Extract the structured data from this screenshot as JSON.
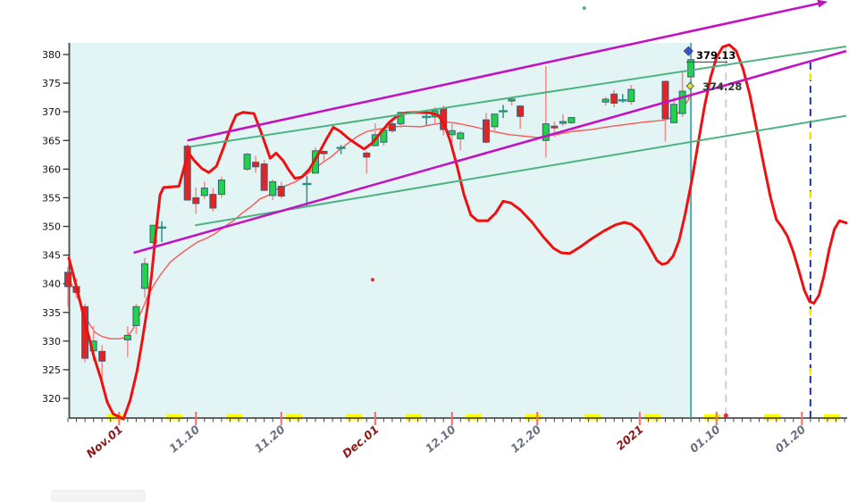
{
  "colors": {
    "chart_bg": "#e2f5f4",
    "page_bg": "#ffffff",
    "candle_up": "#22d24b",
    "candle_down": "#e32424",
    "candle_border": "#35607a",
    "wick": "#f29090",
    "doji": "#2a8f85",
    "ma_line": "#ff5555",
    "cycle_line": "#ee1111",
    "green_channel": "#4db380",
    "magenta_channel": "#c213c2",
    "weekend_mark": "#ffff00",
    "axis": "#444444",
    "date_tick": "#ff6666",
    "label_gray": "#6a7080",
    "label_dark_red": "#8b1a1a",
    "teal_vertical": "#4aabab",
    "gray_vertical": "#cfcfcf",
    "navy_vertical": "#20379b",
    "navy_vertical_alt_dash": "#ffee00"
  },
  "chart_data": {
    "type": "candlestick",
    "title": "",
    "y_axis": {
      "min": 316.5,
      "max": 382,
      "ticks": [
        320,
        325,
        330,
        335,
        340,
        345,
        350,
        355,
        360,
        365,
        370,
        375,
        380
      ]
    },
    "x_axis": {
      "unit": "calendar day offset from first candle (Oct 26)",
      "minor_tick_every_day": true,
      "total_days": 91,
      "tick_labels": [
        {
          "text": "Nov.01",
          "day": 6,
          "emphasis": true
        },
        {
          "text": "11.10",
          "day": 15,
          "emphasis": false
        },
        {
          "text": "11.20",
          "day": 25,
          "emphasis": false
        },
        {
          "text": "Dec.01",
          "day": 36,
          "emphasis": true
        },
        {
          "text": "12.10",
          "day": 45,
          "emphasis": false
        },
        {
          "text": "12.20",
          "day": 55,
          "emphasis": false
        },
        {
          "text": "2021",
          "day": 67,
          "emphasis": true
        },
        {
          "text": "01.10",
          "day": 76,
          "emphasis": false
        },
        {
          "text": "01.20",
          "day": 86,
          "emphasis": false
        }
      ]
    },
    "weekend_day_offsets": [
      5,
      12,
      19,
      26,
      33,
      40,
      47,
      54,
      61,
      68,
      75,
      82,
      89
    ],
    "candle_format": [
      "date",
      "open",
      "high",
      "low",
      "close",
      "day_offset",
      "doji_flag"
    ],
    "candles": [
      [
        "10-26",
        342.0,
        343.0,
        336.0,
        339.5,
        0,
        0
      ],
      [
        "10-27",
        339.5,
        341.0,
        337.5,
        338.5,
        1,
        0
      ],
      [
        "10-28",
        336.0,
        336.5,
        326.3,
        327.0,
        2,
        0
      ],
      [
        "10-29",
        328.3,
        332.6,
        326.5,
        330.0,
        3,
        0
      ],
      [
        "10-30",
        328.2,
        329.3,
        322.6,
        326.5,
        4,
        0
      ],
      [
        "11-02",
        330.2,
        332.6,
        327.2,
        331.0,
        7,
        0
      ],
      [
        "11-03",
        332.7,
        336.5,
        331.2,
        336.0,
        8,
        0
      ],
      [
        "11-04",
        339.2,
        344.5,
        337.5,
        343.5,
        9,
        0
      ],
      [
        "11-05",
        347.2,
        350.2,
        346.1,
        350.2,
        10,
        0
      ],
      [
        "11-06",
        349.8,
        350.9,
        347.3,
        349.8,
        11,
        1
      ],
      [
        "11-09",
        364.0,
        364.4,
        354.9,
        354.6,
        14,
        0
      ],
      [
        "11-10",
        355.0,
        356.8,
        352.2,
        354.0,
        15,
        0
      ],
      [
        "11-11",
        355.4,
        357.8,
        354.8,
        356.7,
        16,
        0
      ],
      [
        "11-12",
        355.6,
        356.7,
        352.6,
        353.2,
        17,
        0
      ],
      [
        "11-13",
        355.6,
        358.7,
        355.0,
        358.1,
        18,
        0
      ],
      [
        "11-16",
        360.0,
        362.8,
        359.7,
        362.6,
        21,
        0
      ],
      [
        "11-17",
        361.2,
        362.3,
        359.4,
        360.4,
        22,
        0
      ],
      [
        "11-18",
        360.9,
        361.6,
        356.2,
        356.3,
        23,
        0
      ],
      [
        "11-19",
        355.4,
        358.2,
        354.6,
        357.8,
        24,
        0
      ],
      [
        "11-20",
        357.0,
        357.8,
        354.9,
        355.3,
        25,
        0
      ],
      [
        "11-23",
        357.4,
        358.8,
        353.5,
        357.4,
        28,
        1
      ],
      [
        "11-24",
        359.3,
        363.8,
        359.3,
        363.2,
        29,
        0
      ],
      [
        "11-25",
        363.1,
        363.2,
        361.5,
        362.7,
        30,
        0
      ],
      [
        "11-27",
        363.7,
        364.2,
        362.6,
        363.7,
        32,
        1
      ],
      [
        "11-30",
        362.8,
        363.1,
        359.2,
        362.1,
        35,
        0
      ],
      [
        "12-01",
        364.1,
        368.0,
        364.0,
        366.0,
        36,
        0
      ],
      [
        "12-02",
        364.7,
        367.2,
        364.1,
        366.8,
        37,
        0
      ],
      [
        "12-03",
        367.9,
        368.4,
        366.3,
        366.7,
        38,
        0
      ],
      [
        "12-04",
        367.9,
        369.9,
        367.2,
        369.9,
        39,
        0
      ],
      [
        "12-07",
        369.1,
        369.6,
        367.7,
        369.1,
        42,
        1
      ],
      [
        "12-08",
        369.1,
        370.8,
        368.0,
        370.2,
        43,
        0
      ],
      [
        "12-09",
        370.5,
        371.1,
        365.9,
        366.9,
        44,
        0
      ],
      [
        "12-10",
        366.0,
        367.9,
        364.5,
        366.7,
        45,
        0
      ],
      [
        "12-11",
        365.3,
        366.7,
        363.3,
        366.3,
        46,
        0
      ],
      [
        "12-14",
        368.6,
        369.8,
        364.5,
        364.7,
        49,
        0
      ],
      [
        "12-15",
        367.4,
        369.6,
        366.3,
        369.6,
        50,
        0
      ],
      [
        "12-16",
        370.1,
        371.2,
        368.9,
        370.1,
        51,
        1
      ],
      [
        "12-17",
        371.9,
        372.5,
        371.1,
        372.2,
        52,
        0
      ],
      [
        "12-18",
        371.0,
        371.2,
        367.0,
        369.2,
        53,
        0
      ],
      [
        "12-21",
        365.0,
        378.0,
        362.0,
        367.9,
        56,
        0
      ],
      [
        "12-22",
        367.5,
        368.3,
        365.6,
        367.3,
        57,
        0
      ],
      [
        "12-23",
        368.0,
        369.6,
        367.5,
        368.3,
        58,
        0
      ],
      [
        "12-24",
        368.1,
        369.0,
        367.9,
        369.0,
        59,
        0
      ],
      [
        "12-28",
        371.7,
        372.6,
        371.1,
        372.2,
        63,
        0
      ],
      [
        "12-29",
        373.1,
        373.8,
        370.8,
        371.5,
        64,
        0
      ],
      [
        "12-30",
        372.0,
        373.1,
        371.6,
        372.0,
        65,
        1
      ],
      [
        "12-31",
        371.8,
        374.7,
        371.2,
        373.9,
        66,
        0
      ],
      [
        "01-04",
        375.3,
        375.5,
        364.8,
        368.8,
        70,
        0
      ],
      [
        "01-05",
        368.1,
        372.5,
        368.0,
        371.3,
        71,
        0
      ],
      [
        "01-06",
        369.7,
        377.0,
        369.1,
        373.6,
        72,
        0
      ],
      [
        "01-07",
        376.1,
        379.5,
        375.6,
        379.1,
        73,
        0
      ]
    ],
    "ma_line_day_value": [
      [
        0.1,
        341.0
      ],
      [
        0.6,
        339.3
      ],
      [
        1.3,
        337.1
      ],
      [
        2,
        334.5
      ],
      [
        2.6,
        332.8
      ],
      [
        3.2,
        331.5
      ],
      [
        4,
        330.8
      ],
      [
        5,
        330.4
      ],
      [
        6.1,
        330.4
      ],
      [
        6.9,
        330.7
      ],
      [
        7.5,
        331.8
      ],
      [
        8.2,
        333.8
      ],
      [
        8.8,
        335.8
      ],
      [
        9.4,
        338.0
      ],
      [
        10.2,
        340.1
      ],
      [
        11,
        341.9
      ],
      [
        12,
        343.8
      ],
      [
        13.1,
        345.1
      ],
      [
        14.1,
        346.2
      ],
      [
        15.2,
        347.3
      ],
      [
        16.2,
        347.9
      ],
      [
        17.3,
        348.8
      ],
      [
        18.3,
        349.9
      ],
      [
        19.4,
        351.0
      ],
      [
        20.4,
        352.3
      ],
      [
        21.5,
        353.5
      ],
      [
        22.5,
        354.8
      ],
      [
        23.6,
        355.5
      ],
      [
        24.6,
        356.6
      ],
      [
        25.7,
        357.2
      ],
      [
        26.7,
        357.8
      ],
      [
        27.7,
        358.8
      ],
      [
        28.8,
        360.0
      ],
      [
        29.8,
        361.1
      ],
      [
        30.9,
        362.2
      ],
      [
        31.9,
        363.5
      ],
      [
        33,
        364.7
      ],
      [
        34,
        365.8
      ],
      [
        35.1,
        366.6
      ],
      [
        36.1,
        366.9
      ],
      [
        37.2,
        367.2
      ],
      [
        38.2,
        367.4
      ],
      [
        39.3,
        367.5
      ],
      [
        41.4,
        367.4
      ],
      [
        42.4,
        367.7
      ],
      [
        44.5,
        368.2
      ],
      [
        45.6,
        368.0
      ],
      [
        47.6,
        367.4
      ],
      [
        49.7,
        366.6
      ],
      [
        51.8,
        366.0
      ],
      [
        53.9,
        365.7
      ],
      [
        55,
        365.5
      ],
      [
        57.1,
        366.0
      ],
      [
        59.2,
        366.6
      ],
      [
        61.3,
        366.9
      ],
      [
        63.3,
        367.4
      ],
      [
        65.4,
        367.8
      ],
      [
        67.5,
        368.2
      ],
      [
        69.6,
        368.5
      ],
      [
        70.7,
        368.9
      ],
      [
        71.4,
        369.6
      ],
      [
        72.1,
        370.8
      ],
      [
        72.7,
        372.1
      ],
      [
        73.1,
        373.5
      ]
    ],
    "cycle_line_day_value": [
      [
        0.1,
        344.5
      ],
      [
        1,
        339.5
      ],
      [
        2,
        333.4
      ],
      [
        3,
        327.5
      ],
      [
        3.9,
        323.3
      ],
      [
        4.6,
        319.4
      ],
      [
        5.3,
        317.3
      ],
      [
        6.5,
        316.4
      ],
      [
        7.3,
        319.7
      ],
      [
        8.1,
        324.8
      ],
      [
        8.7,
        330.0
      ],
      [
        9.3,
        335.7
      ],
      [
        9.8,
        341.5
      ],
      [
        10.4,
        350.2
      ],
      [
        10.8,
        355.5
      ],
      [
        11.2,
        356.8
      ],
      [
        13,
        357.0
      ],
      [
        13.7,
        360.7
      ],
      [
        14.1,
        362.9
      ],
      [
        14.8,
        361.5
      ],
      [
        15.7,
        360.1
      ],
      [
        16.5,
        359.4
      ],
      [
        17.4,
        360.5
      ],
      [
        18.2,
        363.6
      ],
      [
        19.1,
        367.4
      ],
      [
        19.7,
        369.4
      ],
      [
        20.5,
        369.9
      ],
      [
        21.8,
        369.7
      ],
      [
        22.6,
        366.6
      ],
      [
        23.7,
        361.9
      ],
      [
        24.4,
        362.8
      ],
      [
        25.2,
        361.5
      ],
      [
        26,
        359.6
      ],
      [
        26.6,
        358.4
      ],
      [
        27.4,
        358.6
      ],
      [
        28.3,
        360.0
      ],
      [
        29.3,
        362.5
      ],
      [
        30.2,
        365.0
      ],
      [
        31.1,
        367.3
      ],
      [
        31.9,
        366.6
      ],
      [
        32.9,
        365.3
      ],
      [
        33.8,
        364.4
      ],
      [
        34.7,
        363.5
      ],
      [
        35.7,
        364.6
      ],
      [
        36.6,
        366.3
      ],
      [
        37.6,
        368.1
      ],
      [
        38.6,
        369.3
      ],
      [
        39.6,
        369.8
      ],
      [
        41,
        369.9
      ],
      [
        42.5,
        369.8
      ],
      [
        43.4,
        369.4
      ],
      [
        44.1,
        367.8
      ],
      [
        44.8,
        364.9
      ],
      [
        45.6,
        360.5
      ],
      [
        46.4,
        355.6
      ],
      [
        47.2,
        352.0
      ],
      [
        48,
        351.0
      ],
      [
        49.2,
        351.0
      ],
      [
        50.1,
        352.3
      ],
      [
        51,
        354.4
      ],
      [
        51.9,
        354.1
      ],
      [
        53,
        352.9
      ],
      [
        54.4,
        350.7
      ],
      [
        55.7,
        348.2
      ],
      [
        56.9,
        346.2
      ],
      [
        57.8,
        345.4
      ],
      [
        58.8,
        345.3
      ],
      [
        60,
        346.4
      ],
      [
        61.4,
        347.9
      ],
      [
        62.9,
        349.3
      ],
      [
        64.2,
        350.3
      ],
      [
        65.2,
        350.7
      ],
      [
        66,
        350.4
      ],
      [
        67,
        349.2
      ],
      [
        68,
        346.8
      ],
      [
        69,
        344.1
      ],
      [
        69.6,
        343.4
      ],
      [
        70.2,
        343.6
      ],
      [
        70.9,
        344.8
      ],
      [
        71.6,
        347.5
      ],
      [
        72.3,
        352.0
      ],
      [
        73.1,
        358.0
      ],
      [
        73.9,
        365.0
      ],
      [
        74.6,
        371.0
      ],
      [
        75.3,
        376.0
      ],
      [
        76,
        379.5
      ],
      [
        76.7,
        381.3
      ],
      [
        77.5,
        381.7
      ],
      [
        78.3,
        380.6
      ],
      [
        79.1,
        377.5
      ],
      [
        79.9,
        373.0
      ],
      [
        80.7,
        367.0
      ],
      [
        81.5,
        361.0
      ],
      [
        82.3,
        355.2
      ],
      [
        83,
        351.2
      ],
      [
        83.7,
        349.8
      ],
      [
        84.3,
        348.3
      ],
      [
        85,
        345.5
      ],
      [
        85.7,
        342.0
      ],
      [
        86.3,
        338.8
      ],
      [
        86.9,
        336.9
      ],
      [
        87.4,
        336.6
      ],
      [
        88,
        338.0
      ],
      [
        88.6,
        341.5
      ],
      [
        89.2,
        346.0
      ],
      [
        89.8,
        349.5
      ],
      [
        90.4,
        351.0
      ],
      [
        91.2,
        350.6
      ]
    ],
    "trend_lines": [
      {
        "name": "green-channel-lower",
        "color_key": "green_channel",
        "width": 2,
        "from": [
          14.9,
          350.2
        ],
        "to": [
          91.2,
          369.3
        ],
        "arrow": false
      },
      {
        "name": "green-channel-upper",
        "color_key": "green_channel",
        "width": 2,
        "from": [
          14.3,
          363.9
        ],
        "to": [
          91.2,
          381.4
        ],
        "arrow": false
      },
      {
        "name": "magenta-channel-lower",
        "color_key": "magenta_channel",
        "width": 2.6,
        "from": [
          7.7,
          345.4
        ],
        "to": [
          91.2,
          380.6
        ],
        "arrow": false
      },
      {
        "name": "magenta-channel-upper",
        "color_key": "magenta_channel",
        "width": 2.6,
        "from": [
          14.0,
          365.0
        ],
        "to": [
          88.3,
          389.0
        ],
        "arrow": true
      }
    ],
    "vertical_lines": [
      {
        "name": "current-bar-line",
        "day": 73.0,
        "style": "solid",
        "color_key": "teal_vertical",
        "top_value": 382.0
      },
      {
        "name": "gray-dashed-line",
        "day": 77.1,
        "style": "dashed",
        "color_key": "gray_vertical",
        "top_value": 381.5
      },
      {
        "name": "navy-dashed-line",
        "day": 87.0,
        "style": "dashed-duo",
        "color_key": "navy_vertical",
        "top_value": 378.6
      }
    ],
    "markers": [
      {
        "name": "high-price-diamond",
        "type": "diamond",
        "day": 72.7,
        "value": 380.6,
        "color": "#3355dd",
        "size": 5
      },
      {
        "name": "ma-price-diamond",
        "type": "diamond",
        "day": 72.9,
        "value": 374.5,
        "color": "#d6e838",
        "size": 4
      },
      {
        "name": "tiny-green-dot",
        "type": "dot",
        "day": 60.5,
        "value": 388.1,
        "color": "#4db388",
        "size": 2
      },
      {
        "name": "tiny-red-dot-mid",
        "type": "dot",
        "day": 35.7,
        "value": 340.7,
        "color": "#e03030",
        "size": 2
      },
      {
        "name": "axis-red-dot",
        "type": "dot",
        "day": 77.1,
        "value": 317.0,
        "color": "#e03030",
        "size": 2.5
      }
    ],
    "price_labels": [
      {
        "text": "379.13",
        "color": "#000000"
      },
      {
        "text": "374.28",
        "color": "#333333"
      }
    ]
  }
}
